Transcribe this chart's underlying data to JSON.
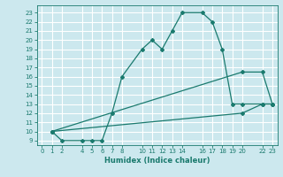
{
  "xlabel": "Humidex (Indice chaleur)",
  "bg_color": "#cce8ee",
  "grid_color": "#ffffff",
  "line_color": "#1a7a6e",
  "xlim": [
    -0.5,
    23.5
  ],
  "ylim": [
    8.5,
    23.8
  ],
  "xticks": [
    0,
    1,
    2,
    4,
    5,
    6,
    7,
    8,
    10,
    11,
    12,
    13,
    14,
    16,
    17,
    18,
    19,
    20,
    22,
    23
  ],
  "yticks": [
    9,
    10,
    11,
    12,
    13,
    14,
    15,
    16,
    17,
    18,
    19,
    20,
    21,
    22,
    23
  ],
  "line1_x": [
    1,
    2,
    4,
    5,
    6,
    7,
    8,
    10,
    11,
    12,
    13,
    14,
    16,
    17,
    18,
    19,
    20,
    22,
    23
  ],
  "line1_y": [
    10,
    9,
    9,
    9,
    9,
    12,
    16,
    19,
    20,
    19,
    21,
    23,
    23,
    22,
    19,
    13,
    13,
    13,
    13
  ],
  "line2_x": [
    1,
    20,
    22,
    23
  ],
  "line2_y": [
    10,
    16.5,
    16.5,
    13
  ],
  "line3_x": [
    1,
    20,
    22,
    23
  ],
  "line3_y": [
    10,
    12,
    13,
    13
  ]
}
